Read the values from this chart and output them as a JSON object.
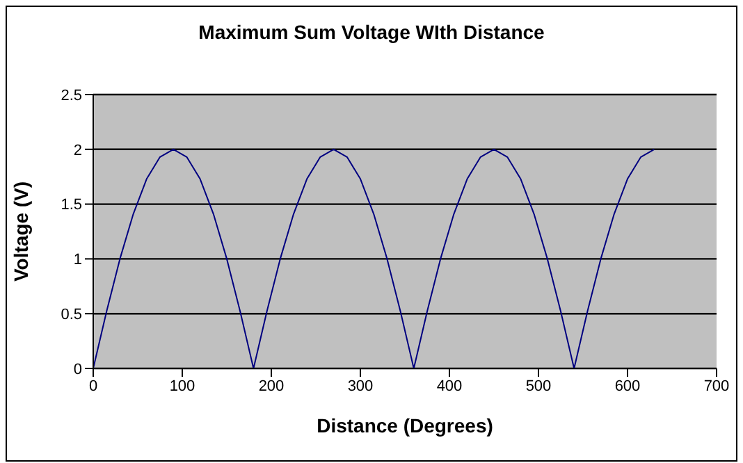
{
  "chart_data": {
    "type": "line",
    "title": "Maximum Sum Voltage WIth Distance",
    "xlabel": "Distance (Degrees)",
    "ylabel": "Voltage (V)",
    "x": [
      0,
      15,
      30,
      45,
      60,
      75,
      90,
      105,
      120,
      135,
      150,
      165,
      180,
      195,
      210,
      225,
      240,
      255,
      270,
      285,
      300,
      315,
      330,
      345,
      360,
      375,
      390,
      405,
      420,
      435,
      450,
      465,
      480,
      495,
      510,
      525,
      540,
      555,
      570,
      585,
      600,
      615,
      630
    ],
    "series": [
      {
        "color": "#000080",
        "values": [
          0,
          0.52,
          1,
          1.41,
          1.73,
          1.93,
          2,
          1.93,
          1.73,
          1.41,
          1,
          0.52,
          0,
          0.52,
          1,
          1.41,
          1.73,
          1.93,
          2,
          1.93,
          1.73,
          1.41,
          1,
          0.52,
          0,
          0.52,
          1,
          1.41,
          1.73,
          1.93,
          2,
          1.93,
          1.73,
          1.41,
          1,
          0.52,
          0,
          0.52,
          1,
          1.41,
          1.73,
          1.93,
          2
        ]
      }
    ],
    "xlim": [
      0,
      700
    ],
    "xticks": [
      0,
      100,
      200,
      300,
      400,
      500,
      600,
      700
    ],
    "ylim": [
      0,
      2.5
    ],
    "yticks": [
      0,
      0.5,
      1,
      1.5,
      2,
      2.5
    ],
    "grid": "y",
    "legend": false,
    "marker": "none",
    "line_style": "solid"
  }
}
